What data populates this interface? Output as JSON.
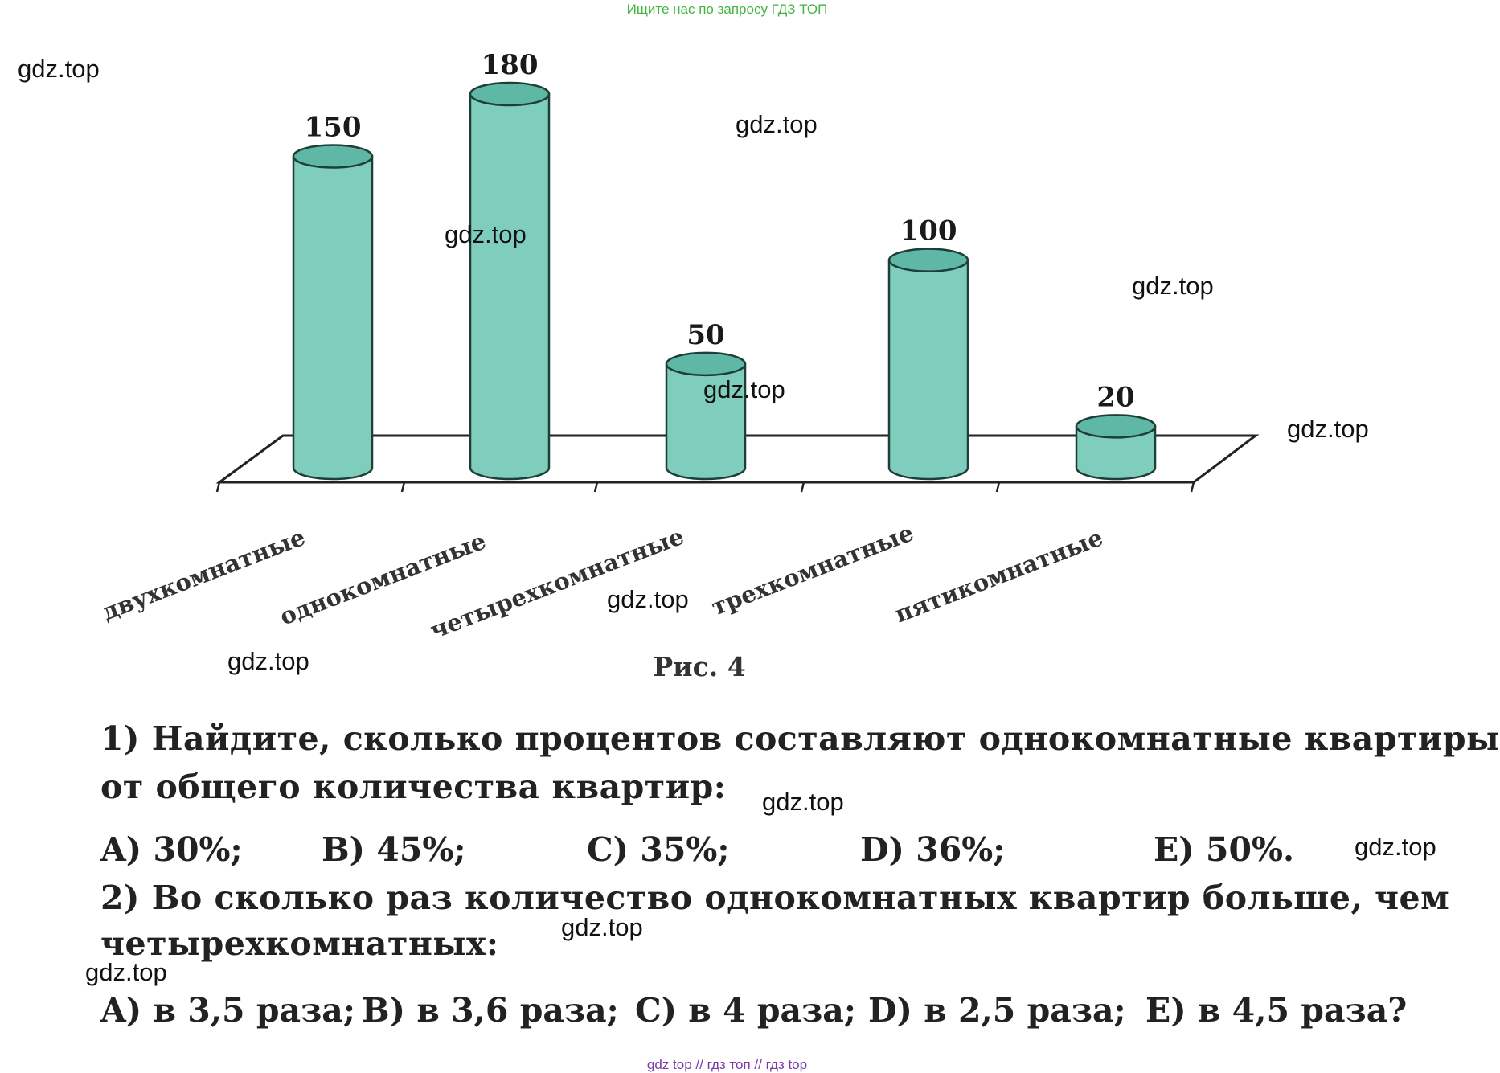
{
  "banner": "Ищите нас по запросу ГДЗ ТОП",
  "watermark": "gdz.top",
  "chart_data": {
    "type": "bar",
    "categories": [
      "двухкомнатные",
      "однокомнатные",
      "четырехкомнатные",
      "трехкомнатные",
      "пятикомнатные"
    ],
    "values": [
      150,
      180,
      50,
      100,
      20
    ],
    "ylim": [
      0,
      180
    ],
    "grid": false,
    "legend": "none",
    "bar_color": "#7ecdbd",
    "bar_top_color": "#5fb8a6"
  },
  "caption": "Рис. 4",
  "q1": {
    "line1": "1) Найдите, сколько процентов составляют однокомнатные квартиры",
    "line2": "от общего количества квартир:",
    "options": [
      "A) 30%;",
      "B) 45%;",
      "C) 35%;",
      "D) 36%;",
      "E) 50%."
    ]
  },
  "q2": {
    "line1": "2) Во сколько раз количество однокомнатных квартир больше, чем",
    "line2": "четырехкомнатных:",
    "options": [
      "A) в 3,5 раза;",
      "B) в 3,6 раза;",
      "C) в 4 раза;",
      "D) в 2,5 раза;",
      "E) в 4,5 раза?"
    ]
  },
  "footer": "gdz top  //  гдз топ  //  гдз top"
}
